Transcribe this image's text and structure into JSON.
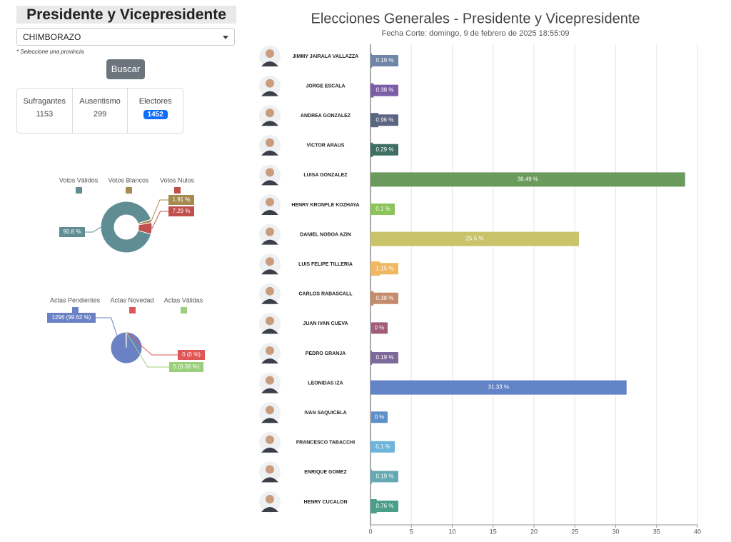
{
  "header": {
    "title": "Presidente y Vicepresidente"
  },
  "form": {
    "province": "CHIMBORAZO",
    "hint": "* Seleccione una provincia",
    "button": "Buscar"
  },
  "stats": [
    {
      "label": "Sufragantes",
      "value": 1153
    },
    {
      "label": "Ausentismo",
      "value": 299
    },
    {
      "label": "Electores",
      "value": 1452
    }
  ],
  "chart_data": [
    {
      "type": "donut",
      "categories": [
        "Votos Válidos",
        "Votos Blancos",
        "Votos Nulos"
      ],
      "values": [
        90.8,
        1.91,
        7.29
      ],
      "value_labels": [
        "90.8 %",
        "1.91 %",
        "7.29 %"
      ],
      "colors": [
        "#5f8d93",
        "#a68a4e",
        "#c0504d"
      ]
    },
    {
      "type": "pie",
      "categories": [
        "Actas Pendientes",
        "Actas Novedad",
        "Actas Válidas"
      ],
      "values": [
        1296,
        0,
        5
      ],
      "value_labels": [
        "1296 (99.62 %)",
        "0 (0 %)",
        "5 (0.38 %)"
      ],
      "colors": [
        "#6a82c4",
        "#e05555",
        "#9bcf7b"
      ]
    },
    {
      "type": "bar",
      "orientation": "horizontal",
      "title": "Elecciones Generales - Presidente y Vicepresidente",
      "subtitle": "Fecha Corte: domingo, 9 de febrero de 2025 18:55:09",
      "categories": [
        "JIMMY JAIRALA VALLAZZA",
        "JORGE ESCALA",
        "ANDREA GONZALEZ",
        "VICTOR ARAUS",
        "LUISA GONZALEZ",
        "HENRY KRONFLE KOZHAYA",
        "DANIEL NOBOA AZIN",
        "LUIS FELIPE TILLERIA",
        "CARLOS RABASCALL",
        "JUAN IVAN CUEVA",
        "PEDRO GRANJA",
        "LEONIDAS IZA",
        "IVAN SAQUICELA",
        "FRANCESCO TABACCHI",
        "ENRIQUE GOMEZ",
        "HENRY CUCALON"
      ],
      "values": [
        0.19,
        0.38,
        0.96,
        0.29,
        38.49,
        0.1,
        25.5,
        1.15,
        0.38,
        0,
        0.19,
        31.33,
        0,
        0.1,
        0.19,
        0.76
      ],
      "value_labels": [
        "0.19 %",
        "0.38 %",
        "0.96 %",
        "0.29 %",
        "38.49 %",
        "0.1 %",
        "25.5 %",
        "1.15 %",
        "0.38 %",
        "0 %",
        "0.19 %",
        "31.33 %",
        "0 %",
        "0.1 %",
        "0.19 %",
        "0.76 %"
      ],
      "colors": [
        "#6f86a8",
        "#7c5ea8",
        "#5b6480",
        "#3f6e62",
        "#6a9a5c",
        "#8cc45a",
        "#c9c46a",
        "#f0b860",
        "#c48c6c",
        "#a05c7a",
        "#7d6a9a",
        "#6283c6",
        "#5d8fc9",
        "#6cb4d9",
        "#66a9b4",
        "#4b9e8a"
      ],
      "xlim": [
        0,
        40
      ],
      "xticks": [
        0,
        5,
        10,
        15,
        20,
        25,
        30,
        35,
        40
      ],
      "grid": true
    }
  ]
}
